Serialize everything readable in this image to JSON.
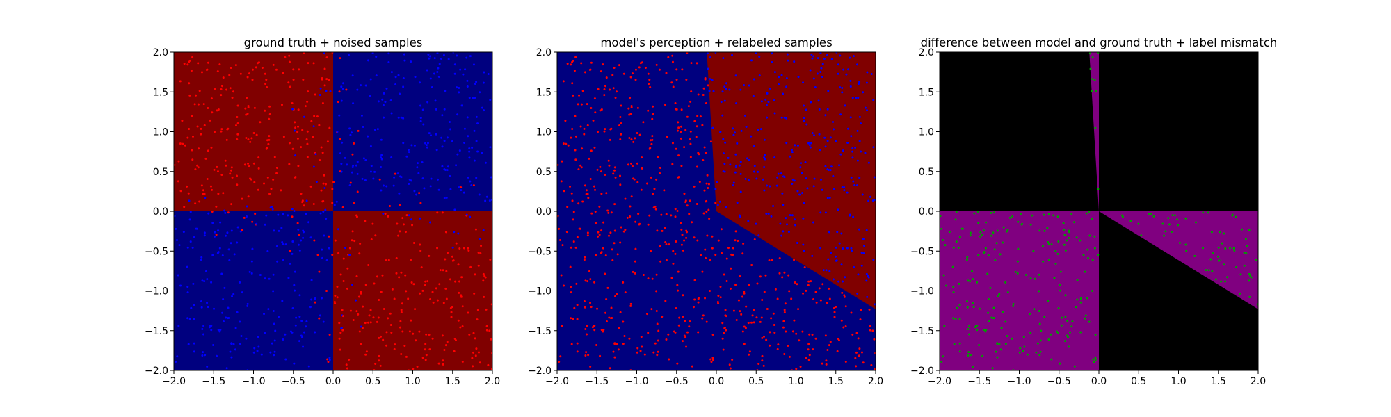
{
  "colors": {
    "red_region": "#800000",
    "blue_region": "#00007f",
    "black_region": "#000000",
    "purple_region": "#800080",
    "red_point": "#ff0000",
    "blue_point": "#0000ff",
    "green_point": "#00a000"
  },
  "chart_data": [
    {
      "type": "scatter",
      "title": "ground truth + noised samples",
      "xlim": [
        -2.0,
        2.0
      ],
      "ylim": [
        -2.0,
        2.0
      ],
      "xticks": [
        "−2.0",
        "−1.5",
        "−1.0",
        "−0.5",
        "0.0",
        "0.5",
        "1.0",
        "1.5",
        "2.0"
      ],
      "yticks": [
        "−2.0",
        "−1.5",
        "−1.0",
        "−0.5",
        "0.0",
        "0.5",
        "1.0",
        "1.5",
        "2.0"
      ],
      "background_regions": [
        {
          "polygon": [
            [
              -2,
              0
            ],
            [
              0,
              0
            ],
            [
              0,
              2
            ],
            [
              -2,
              2
            ]
          ],
          "color": "red_region"
        },
        {
          "polygon": [
            [
              0,
              0
            ],
            [
              2,
              0
            ],
            [
              2,
              2
            ],
            [
              0,
              2
            ]
          ],
          "color": "blue_region"
        },
        {
          "polygon": [
            [
              -2,
              -2
            ],
            [
              0,
              -2
            ],
            [
              0,
              0
            ],
            [
              -2,
              0
            ]
          ],
          "color": "blue_region"
        },
        {
          "polygon": [
            [
              0,
              -2
            ],
            [
              2,
              -2
            ],
            [
              2,
              0
            ],
            [
              0,
              0
            ]
          ],
          "color": "red_region"
        }
      ],
      "points": {
        "n": 1000,
        "seed": 11,
        "rule": "ground-truth-with-noise",
        "classes": [
          "red_point",
          "blue_point"
        ],
        "noise": 0.3
      }
    },
    {
      "type": "scatter",
      "title": "model's perception + relabeled samples",
      "xlim": [
        -2.0,
        2.0
      ],
      "ylim": [
        -2.0,
        2.0
      ],
      "xticks": [
        "−2.0",
        "−1.5",
        "−1.0",
        "−0.5",
        "0.0",
        "0.5",
        "1.0",
        "1.5",
        "2.0"
      ],
      "yticks": [
        "−2.0",
        "−1.5",
        "−1.0",
        "−0.5",
        "0.0",
        "0.5",
        "1.0",
        "1.5",
        "2.0"
      ],
      "background_regions": [
        {
          "polygon": [
            [
              -2,
              -2
            ],
            [
              2,
              -2
            ],
            [
              2,
              2
            ],
            [
              -2,
              2
            ]
          ],
          "color": "blue_region"
        },
        {
          "polygon": [
            [
              0,
              0
            ],
            [
              -0.12,
              2
            ],
            [
              2,
              2
            ],
            [
              2,
              -1.23
            ]
          ],
          "color": "red_region"
        }
      ],
      "points": {
        "n": 1000,
        "seed": 11,
        "rule": "model-relabeled",
        "classes": [
          "red_point",
          "blue_point"
        ]
      }
    },
    {
      "type": "scatter",
      "title": "difference between model and ground truth + label mismatch",
      "xlim": [
        -2.0,
        2.0
      ],
      "ylim": [
        -2.0,
        2.0
      ],
      "xticks": [
        "−2.0",
        "−1.5",
        "−1.0",
        "−0.5",
        "0.0",
        "0.5",
        "1.0",
        "1.5",
        "2.0"
      ],
      "yticks": [
        "−2.0",
        "−1.5",
        "−1.0",
        "−0.5",
        "0.0",
        "0.5",
        "1.0",
        "1.5",
        "2.0"
      ],
      "background_regions": [
        {
          "polygon": [
            [
              -2,
              -2
            ],
            [
              2,
              -2
            ],
            [
              2,
              2
            ],
            [
              -2,
              2
            ]
          ],
          "color": "black_region"
        },
        {
          "polygon": [
            [
              -2,
              -2
            ],
            [
              0,
              -2
            ],
            [
              0,
              0
            ],
            [
              -2,
              0
            ]
          ],
          "color": "purple_region"
        },
        {
          "polygon": [
            [
              0,
              0
            ],
            [
              2,
              0
            ],
            [
              2,
              -1.23
            ]
          ],
          "color": "purple_region"
        },
        {
          "polygon": [
            [
              0,
              0
            ],
            [
              -0.12,
              2
            ],
            [
              0,
              2
            ]
          ],
          "color": "purple_region"
        }
      ],
      "points": {
        "n": 1000,
        "seed": 11,
        "rule": "mismatch-only",
        "classes": [
          "green_point"
        ]
      }
    }
  ]
}
